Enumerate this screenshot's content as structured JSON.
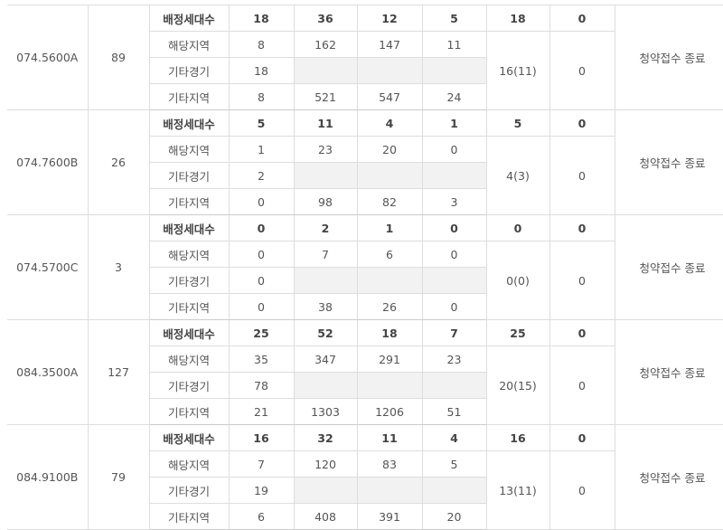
{
  "labels": {
    "allocated": "배정세대수",
    "local": "해당지역",
    "other_gyeonggi": "기타경기",
    "other_region": "기타지역"
  },
  "groups": [
    {
      "type": "074.5600A",
      "supply": "89",
      "allocated": [
        "18",
        "36",
        "12",
        "5",
        "18",
        "0"
      ],
      "local": [
        "8",
        "162",
        "147",
        "11"
      ],
      "other_gyeonggi": [
        "18"
      ],
      "other_region": [
        "8",
        "521",
        "547",
        "24"
      ],
      "merged": "16(11)",
      "merged2": "0",
      "status": "청약접수 종료"
    },
    {
      "type": "074.7600B",
      "supply": "26",
      "allocated": [
        "5",
        "11",
        "4",
        "1",
        "5",
        "0"
      ],
      "local": [
        "1",
        "23",
        "20",
        "0"
      ],
      "other_gyeonggi": [
        "2"
      ],
      "other_region": [
        "0",
        "98",
        "82",
        "3"
      ],
      "merged": "4(3)",
      "merged2": "0",
      "status": "청약접수 종료"
    },
    {
      "type": "074.5700C",
      "supply": "3",
      "allocated": [
        "0",
        "2",
        "1",
        "0",
        "0",
        "0"
      ],
      "local": [
        "0",
        "7",
        "6",
        "0"
      ],
      "other_gyeonggi": [
        "0"
      ],
      "other_region": [
        "0",
        "38",
        "26",
        "0"
      ],
      "merged": "0(0)",
      "merged2": "0",
      "status": "청약접수 종료"
    },
    {
      "type": "084.3500A",
      "supply": "127",
      "allocated": [
        "25",
        "52",
        "18",
        "7",
        "25",
        "0"
      ],
      "local": [
        "35",
        "347",
        "291",
        "23"
      ],
      "other_gyeonggi": [
        "78"
      ],
      "other_region": [
        "21",
        "1303",
        "1206",
        "51"
      ],
      "merged": "20(15)",
      "merged2": "0",
      "status": "청약접수 종료"
    },
    {
      "type": "084.9100B",
      "supply": "79",
      "allocated": [
        "16",
        "32",
        "11",
        "4",
        "16",
        "0"
      ],
      "local": [
        "7",
        "120",
        "83",
        "5"
      ],
      "other_gyeonggi": [
        "19"
      ],
      "other_region": [
        "6",
        "408",
        "391",
        "20"
      ],
      "merged": "13(11)",
      "merged2": "0",
      "status": "청약접수 종료"
    }
  ]
}
